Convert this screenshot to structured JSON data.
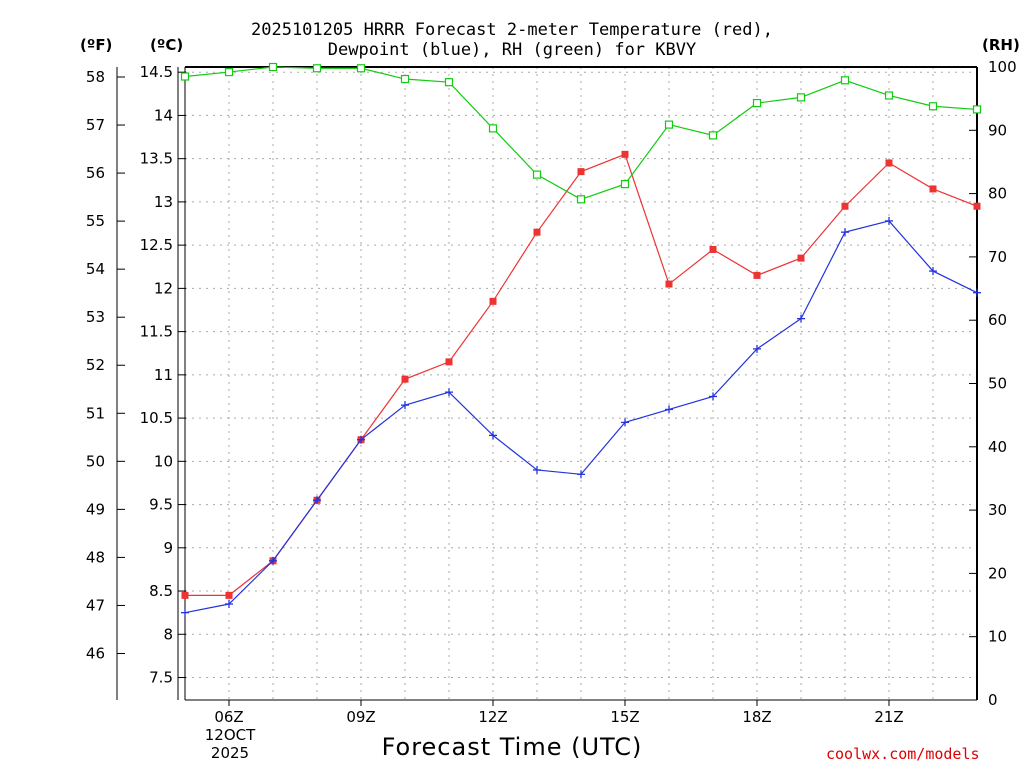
{
  "header": {
    "title_line1": "2025101205 HRRR Forecast 2-meter Temperature (red),",
    "title_line2": "Dewpoint (blue), RH (green) for KBVY",
    "unit_f": "(ºF)",
    "unit_c": "(ºC)",
    "unit_rh": "(RH)"
  },
  "footer": {
    "x_axis_title": "Forecast Time (UTC)",
    "date_line1": "12OCT",
    "date_line2": "2025",
    "credit": "coolwx.com/models"
  },
  "colors": {
    "temp": "#ee3333",
    "dewpoint": "#2233dd",
    "rh": "#11cc11",
    "grid": "#aaaaaa",
    "credit": "#e00000"
  },
  "chart_data": {
    "type": "line",
    "title": "2025101205 HRRR Forecast 2-meter Temperature (red), Dewpoint (blue), RH (green) for KBVY",
    "xlabel": "Forecast Time (UTC)",
    "x": [
      5,
      6,
      7,
      8,
      9,
      10,
      11,
      12,
      13,
      14,
      15,
      16,
      17,
      18,
      19,
      20,
      21,
      22,
      23
    ],
    "xlim": [
      5,
      23
    ],
    "x_ticks": [
      6,
      9,
      12,
      15,
      18,
      21
    ],
    "x_tick_labels": [
      "06Z",
      "09Z",
      "12Z",
      "15Z",
      "18Z",
      "21Z"
    ],
    "minor_grid_x": [
      7,
      8,
      10,
      11,
      13,
      14,
      16,
      17,
      19,
      20,
      22
    ],
    "y_celsius": {
      "label": "(ºC)",
      "lim": [
        7.24,
        14.56
      ],
      "ticks": [
        7.5,
        8,
        8.5,
        9,
        9.5,
        10,
        10.5,
        11,
        11.5,
        12,
        12.5,
        13,
        13.5,
        14,
        14.5
      ],
      "tick_labels": [
        "7.5",
        "8",
        "8.5",
        "9",
        "9.5",
        "10",
        "10.5",
        "11",
        "11.5",
        "12",
        "12.5",
        "13",
        "13.5",
        "14",
        "14.5"
      ]
    },
    "y_fahrenheit": {
      "label": "(ºF)",
      "ticks": [
        46,
        47,
        48,
        49,
        50,
        51,
        52,
        53,
        54,
        55,
        56,
        57,
        58
      ],
      "tick_labels": [
        "46",
        "47",
        "48",
        "49",
        "50",
        "51",
        "52",
        "53",
        "54",
        "55",
        "56",
        "57",
        "58"
      ]
    },
    "y_rh": {
      "label": "(RH)",
      "lim": [
        0,
        100
      ],
      "ticks": [
        0,
        10,
        20,
        30,
        40,
        50,
        60,
        70,
        80,
        90,
        100
      ],
      "tick_labels": [
        "0",
        "10",
        "20",
        "30",
        "40",
        "50",
        "60",
        "70",
        "80",
        "90",
        "100"
      ]
    },
    "grid": true,
    "series": [
      {
        "name": "Temperature",
        "unit": "C",
        "color": "#ee3333",
        "marker": "filled-square",
        "values": [
          8.45,
          8.45,
          8.85,
          9.55,
          10.25,
          10.95,
          11.15,
          11.85,
          12.65,
          13.35,
          13.55,
          12.05,
          12.45,
          12.15,
          12.35,
          12.95,
          13.45,
          13.15,
          12.95
        ]
      },
      {
        "name": "Dewpoint",
        "unit": "C",
        "color": "#2233dd",
        "marker": "plus",
        "values": [
          8.25,
          8.35,
          8.85,
          9.55,
          10.25,
          10.65,
          10.8,
          10.3,
          9.9,
          9.85,
          10.45,
          10.6,
          10.75,
          11.3,
          11.65,
          12.65,
          12.78,
          12.2,
          11.95
        ]
      },
      {
        "name": "RH",
        "unit": "%",
        "color": "#11cc11",
        "marker": "open-square",
        "values": [
          98.5,
          99.2,
          100,
          99.8,
          99.8,
          98.1,
          97.6,
          90.3,
          83.0,
          79.1,
          81.5,
          90.9,
          89.2,
          94.3,
          95.2,
          97.9,
          95.5,
          93.8,
          93.3
        ]
      }
    ]
  }
}
